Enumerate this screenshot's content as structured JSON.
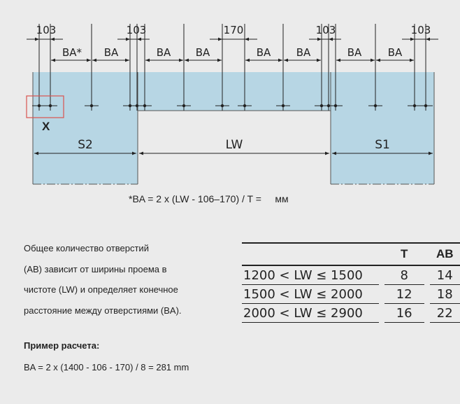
{
  "diagram": {
    "top_dims": [
      "103",
      "103",
      "170",
      "103",
      "103"
    ],
    "ba_labels": [
      "BA*",
      "BA",
      "BA",
      "BA",
      "BA",
      "BA",
      "BA",
      "BA"
    ],
    "marker_label": "X",
    "spans": [
      "S2",
      "LW",
      "S1"
    ]
  },
  "formula": {
    "text": "*BA = 2 x (LW - 106–170) / T =",
    "unit": "мм"
  },
  "description": {
    "lines": [
      "Общее количество отверстий",
      "(AB) зависит от ширины проема в",
      "чистоте (LW) и определяет конечное",
      "расстояние между отверстиями (BA)."
    ]
  },
  "example": {
    "title": "Пример расчета:",
    "formula": "BA = 2 x (1400 - 106 - 170) / 8 = 281 mm"
  },
  "table": {
    "headers": [
      "",
      "T",
      "AB"
    ],
    "rows": [
      {
        "range": "1200 < LW ≤ 1500",
        "t": "8",
        "ab": "14"
      },
      {
        "range": "1500 < LW ≤ 2000",
        "t": "12",
        "ab": "18"
      },
      {
        "range": "2000 < LW ≤ 2900",
        "t": "16",
        "ab": "22"
      }
    ]
  },
  "colors": {
    "background": "#ebebeb",
    "panel_fill": "#b7d6e4",
    "line": "#222222",
    "highlight": "#d9534f"
  }
}
